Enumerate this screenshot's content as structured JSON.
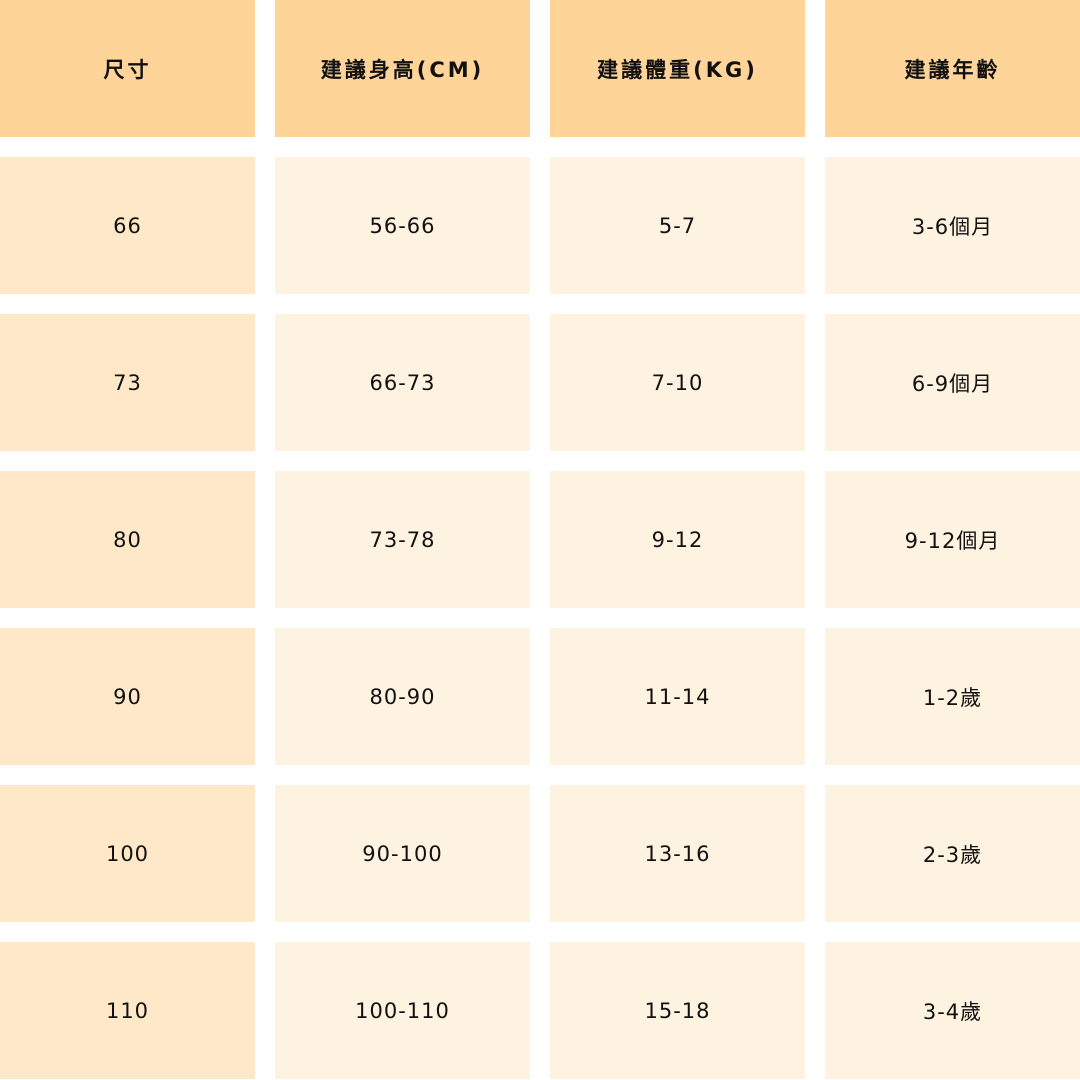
{
  "colors": {
    "header": "#FFD498",
    "first_column": "#FFE8C8",
    "body": "#FEF2E1"
  },
  "headers": [
    "尺寸",
    "建議身高(CM)",
    "建議體重(KG)",
    "建議年齡"
  ],
  "rows": [
    [
      "66",
      "56-66",
      "5-7",
      "3-6個月"
    ],
    [
      "73",
      "66-73",
      "7-10",
      "6-9個月"
    ],
    [
      "80",
      "73-78",
      "9-12",
      "9-12個月"
    ],
    [
      "90",
      "80-90",
      "11-14",
      "1-2歲"
    ],
    [
      "100",
      "90-100",
      "13-16",
      "2-3歲"
    ],
    [
      "110",
      "100-110",
      "15-18",
      "3-4歲"
    ]
  ]
}
